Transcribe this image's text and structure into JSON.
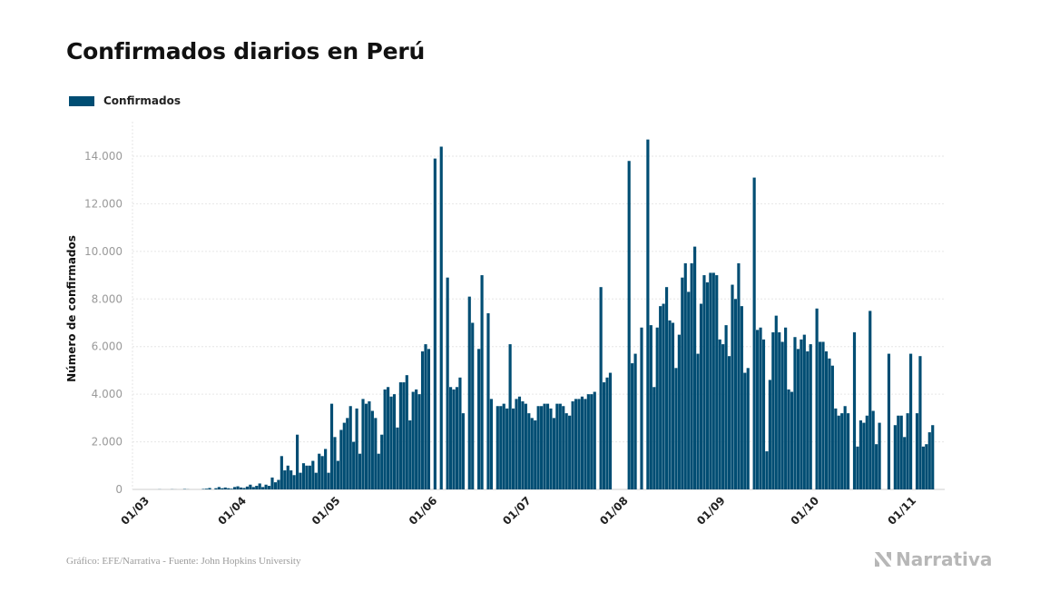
{
  "chart_data": {
    "type": "bar",
    "title": "Confirmados diarios en Perú",
    "ylabel": "Número de confirmados",
    "xlabel": "",
    "ylim": [
      0,
      15000
    ],
    "yticks": [
      0,
      2000,
      4000,
      6000,
      8000,
      10000,
      12000,
      14000
    ],
    "ytick_labels": [
      "0",
      "2.000",
      "4.000",
      "6.000",
      "8.000",
      "10.000",
      "12.000",
      "14.000"
    ],
    "xtick_labels": [
      "01/03",
      "01/04",
      "01/05",
      "01/06",
      "01/07",
      "01/08",
      "01/09",
      "01/10",
      "01/11"
    ],
    "xtick_day_index": [
      0,
      31,
      61,
      92,
      122,
      153,
      184,
      214,
      245
    ],
    "grid": true,
    "legend_position": "top-left",
    "color": "#004d73",
    "series": [
      {
        "name": "Confirmados",
        "start_date": "2020-03-01",
        "values": [
          0,
          0,
          0,
          0,
          0,
          5,
          0,
          0,
          0,
          6,
          2,
          0,
          0,
          15,
          5,
          0,
          0,
          0,
          0,
          20,
          30,
          60,
          0,
          50,
          100,
          50,
          80,
          50,
          30,
          100,
          130,
          80,
          60,
          120,
          200,
          100,
          150,
          250,
          100,
          200,
          150,
          500,
          300,
          400,
          1400,
          800,
          1000,
          800,
          600,
          2300,
          700,
          1100,
          1000,
          1000,
          1200,
          700,
          1500,
          1400,
          1700,
          700,
          3600,
          2200,
          1200,
          2500,
          2800,
          3000,
          3500,
          2000,
          3400,
          1500,
          3800,
          3600,
          3700,
          3300,
          3000,
          1500,
          2300,
          4200,
          4300,
          3900,
          4000,
          2600,
          4500,
          4500,
          4800,
          2900,
          4100,
          4200,
          4000,
          5800,
          6100,
          5900,
          0,
          13900,
          0,
          14400,
          0,
          8900,
          4300,
          4200,
          4300,
          4700,
          3200,
          0,
          8100,
          7000,
          0,
          5900,
          9000,
          0,
          7400,
          3800,
          0,
          3500,
          3500,
          3600,
          3400,
          6100,
          3400,
          3800,
          3900,
          3700,
          3600,
          3200,
          3000,
          2900,
          3500,
          3500,
          3600,
          3600,
          3400,
          3000,
          3600,
          3600,
          3500,
          3200,
          3100,
          3700,
          3800,
          3800,
          3900,
          3800,
          4000,
          4000,
          4100,
          0,
          8500,
          4500,
          4700,
          4900,
          0,
          0,
          0,
          0,
          0,
          13800,
          5300,
          5700,
          0,
          6800,
          0,
          14700,
          6900,
          4300,
          6800,
          7700,
          7800,
          8500,
          7100,
          7000,
          5100,
          6500,
          8900,
          9500,
          8300,
          9500,
          10200,
          5700,
          7800,
          9000,
          8700,
          9100,
          9100,
          9000,
          6300,
          6100,
          6900,
          5600,
          8600,
          8000,
          9500,
          7700,
          4900,
          5100,
          0,
          13100,
          6700,
          6800,
          6300,
          1600,
          4600,
          6600,
          7300,
          6600,
          6200,
          6800,
          4200,
          4100,
          6400,
          5900,
          6300,
          6500,
          5800,
          6100,
          0,
          7600,
          6200,
          6200,
          5800,
          5500,
          5200,
          3400,
          3100,
          3200,
          3500,
          3200,
          0,
          6600,
          1800,
          2900,
          2800,
          3100,
          7500,
          3300,
          1900,
          2800,
          0,
          0,
          5700,
          0,
          2700,
          3100,
          3100,
          2200,
          3200,
          5700,
          0,
          3200,
          5600,
          1800,
          1900,
          2400,
          2700
        ]
      }
    ],
    "source": "Gráfico: EFE/Narrativa - Fuente: John Hopkins University",
    "brand": "Narrativa"
  }
}
